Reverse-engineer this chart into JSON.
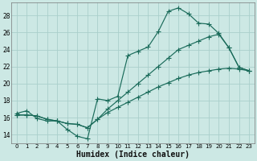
{
  "xlabel": "Humidex (Indice chaleur)",
  "bg_color": "#cce8e4",
  "grid_color": "#aacfcb",
  "line_color": "#1a6b5a",
  "xlim": [
    -0.5,
    23.5
  ],
  "ylim": [
    13.0,
    29.5
  ],
  "xticks": [
    0,
    1,
    2,
    3,
    4,
    5,
    6,
    7,
    8,
    9,
    10,
    11,
    12,
    13,
    14,
    15,
    16,
    17,
    18,
    19,
    20,
    21,
    22,
    23
  ],
  "yticks": [
    14,
    16,
    18,
    20,
    22,
    24,
    26,
    28
  ],
  "line1_y": [
    16.5,
    16.8,
    15.9,
    15.6,
    15.6,
    14.6,
    13.8,
    13.5,
    18.2,
    18.0,
    18.5,
    23.3,
    23.8,
    24.3,
    26.1,
    28.5,
    28.9,
    28.2,
    27.1,
    27.0,
    25.9,
    24.2,
    21.9,
    21.5
  ],
  "line2_y": [
    16.3,
    16.3,
    16.2,
    15.8,
    15.6,
    15.3,
    15.2,
    14.8,
    15.8,
    17.0,
    18.0,
    19.0,
    20.0,
    21.0,
    22.0,
    23.0,
    24.0,
    24.5,
    25.0,
    25.5,
    25.8,
    24.2,
    21.9,
    21.5
  ],
  "line3_y": [
    16.3,
    16.3,
    16.2,
    15.8,
    15.6,
    15.3,
    15.2,
    14.8,
    15.8,
    16.6,
    17.2,
    17.8,
    18.4,
    19.0,
    19.6,
    20.1,
    20.6,
    21.0,
    21.3,
    21.5,
    21.7,
    21.8,
    21.7,
    21.5
  ]
}
